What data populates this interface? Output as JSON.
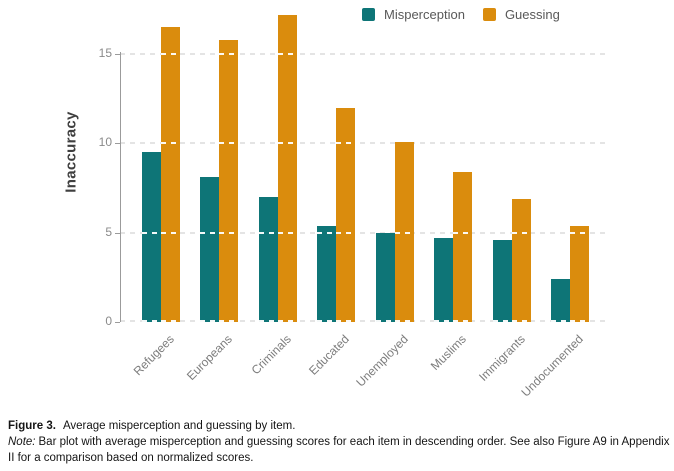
{
  "chart_data": {
    "type": "bar",
    "title": "",
    "xlabel": "",
    "ylabel": "Inaccuracy",
    "categories": [
      "Refugees",
      "Europeans",
      "Criminals",
      "Educated",
      "Unemployed",
      "Muslims",
      "Immigrants",
      "Undocumented"
    ],
    "series": [
      {
        "name": "Misperception",
        "color": "#0E7577",
        "values": [
          9.5,
          8.1,
          7.0,
          5.4,
          5.0,
          4.7,
          4.6,
          2.4
        ]
      },
      {
        "name": "Guessing",
        "color": "#DA8C0D",
        "values": [
          16.5,
          15.8,
          17.2,
          12.0,
          10.1,
          8.4,
          6.9,
          5.4
        ]
      }
    ],
    "yticks": [
      0,
      5,
      10,
      15
    ],
    "ylim": [
      0,
      18
    ],
    "grid": "horizontal dashed at 0, 5, 10, 15 (gray on background, white over bars)",
    "legend_position": "top-right",
    "x_label_rotation_deg": 45
  },
  "colors": {
    "misperception": "#0E7577",
    "guessing": "#DA8C0D",
    "axis": "#9b9b9b",
    "tick_text": "#8a8a8a",
    "grid": "#e4e4e4"
  },
  "caption": {
    "figure_label": "Figure 3.",
    "figure_title": "Average misperception and guessing by item.",
    "note_label": "Note:",
    "note_text": "Bar plot with average misperception and guessing scores for each item in descending order. See also Figure A9 in Appendix II for a comparison based on normalized scores."
  }
}
